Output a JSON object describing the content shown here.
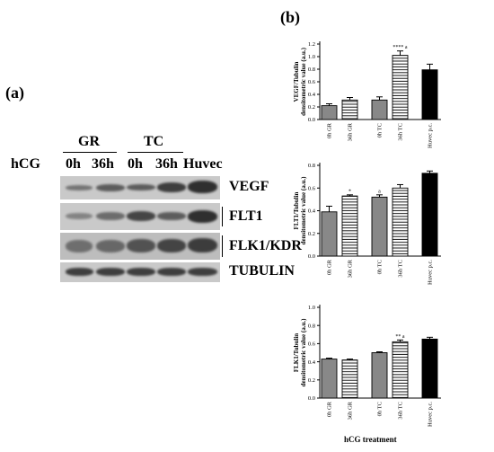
{
  "panel_a": {
    "label": "(a)",
    "row_title": "hCG",
    "groups": [
      "GR",
      "TC"
    ],
    "lanes": [
      "0h",
      "36h",
      "0h",
      "36h",
      "Huvec"
    ],
    "rows": [
      "VEGF",
      "FLT1",
      "FLK1/KDR",
      "TUBULIN"
    ]
  },
  "panel_b": {
    "label": "(b)",
    "xlabel": "hCG treatment"
  },
  "chart_data": [
    {
      "type": "bar",
      "title": "",
      "ylabel": "VEGF/Tubulin densitometric value (a.u.)",
      "xlabel": "",
      "categories": [
        "0h GR",
        "36h GR",
        "0h TC",
        "36h TC",
        "Huvec p.c."
      ],
      "values": [
        0.22,
        0.31,
        0.31,
        1.02,
        0.79
      ],
      "errors": [
        0.03,
        0.04,
        0.05,
        0.07,
        0.09
      ],
      "annotations": [
        "",
        "",
        "",
        "**** a",
        ""
      ],
      "fills": [
        "gray",
        "hatch",
        "gray",
        "hatch",
        "black"
      ],
      "ylim": [
        0,
        1.2
      ],
      "yticks": [
        "0.0",
        "0.2",
        "0.4",
        "0.6",
        "0.8",
        "1.0",
        "1.2"
      ]
    },
    {
      "type": "bar",
      "title": "",
      "ylabel": "FLT1/Tubulin densitometric value (a.u.)",
      "xlabel": "",
      "categories": [
        "0h GR",
        "36h GR",
        "0h TC",
        "36h TC",
        "Huvec p.c."
      ],
      "values": [
        0.39,
        0.53,
        0.52,
        0.6,
        0.73
      ],
      "errors": [
        0.05,
        0.01,
        0.02,
        0.03,
        0.02
      ],
      "annotations": [
        "",
        "*",
        "a",
        "",
        ""
      ],
      "fills": [
        "gray",
        "hatch",
        "gray",
        "hatch",
        "black"
      ],
      "ylim": [
        0,
        0.8
      ],
      "yticks": [
        "0.0",
        "0.2",
        "0.4",
        "0.6",
        "0.8"
      ]
    },
    {
      "type": "bar",
      "title": "",
      "ylabel": "FLK1/Tubulin densitometric value (a.u.)",
      "xlabel": "hCG treatment",
      "categories": [
        "0h GR",
        "36h GR",
        "0h TC",
        "36h TC",
        "Huvec p.c."
      ],
      "values": [
        0.43,
        0.42,
        0.5,
        0.62,
        0.65
      ],
      "errors": [
        0.01,
        0.01,
        0.01,
        0.02,
        0.02
      ],
      "annotations": [
        "",
        "",
        "",
        "** a",
        ""
      ],
      "fills": [
        "gray",
        "hatch",
        "gray",
        "hatch",
        "black"
      ],
      "ylim": [
        0,
        1.0
      ],
      "yticks": [
        "0.0",
        "0.2",
        "0.4",
        "0.6",
        "0.8",
        "1.0"
      ]
    }
  ]
}
